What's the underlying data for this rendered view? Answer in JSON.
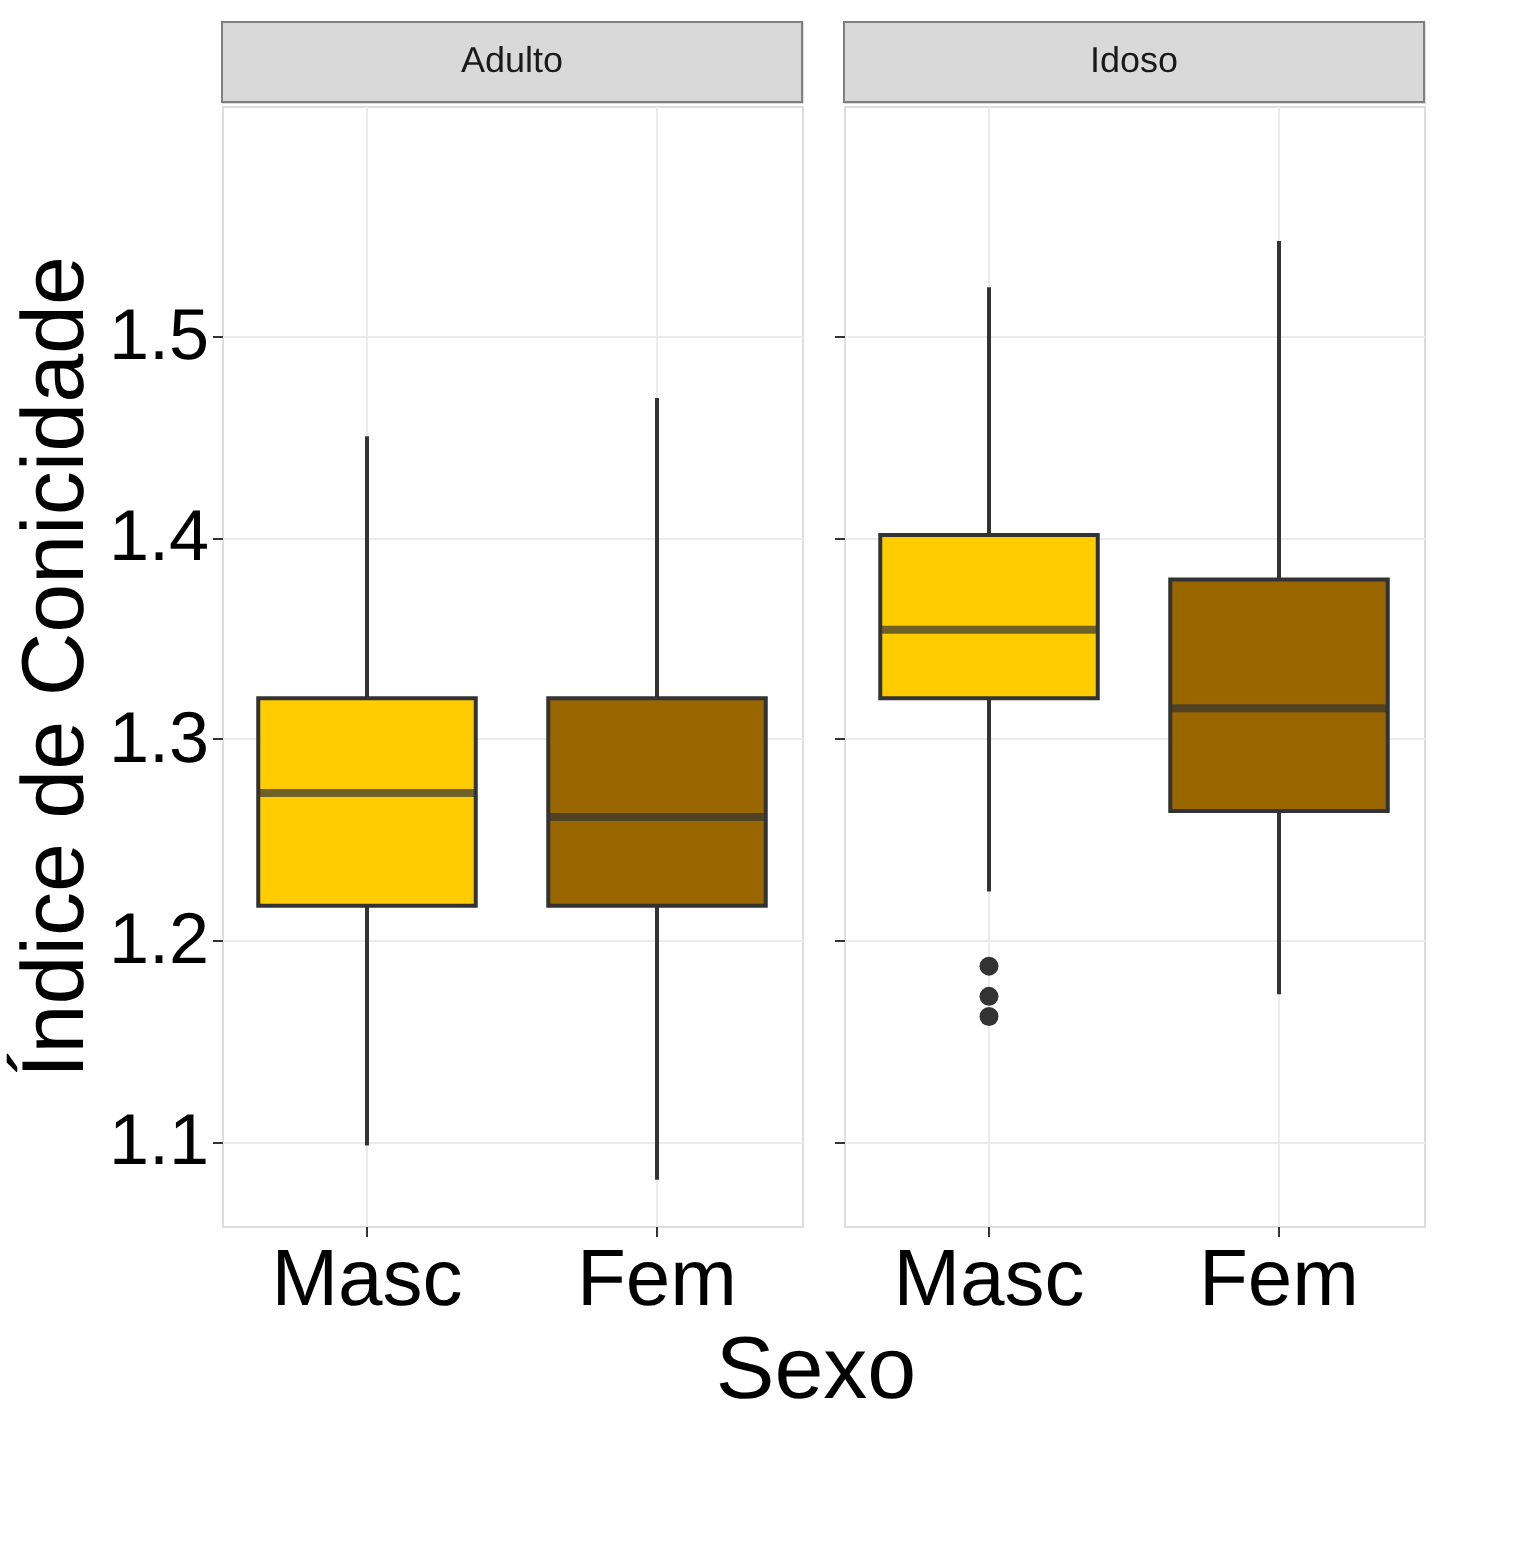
{
  "chart_data": [
    {
      "type": "box",
      "title": "Adulto",
      "ylabel": "Índice de Conicidade",
      "categories": [
        "Masc",
        "Fem"
      ],
      "colors": [
        "#ffcc00",
        "#996600"
      ],
      "boxes": [
        {
          "low": 1.098,
          "q1": 1.217,
          "median": 1.273,
          "q3": 1.32,
          "high": 1.45
        },
        {
          "low": 1.081,
          "q1": 1.217,
          "median": 1.261,
          "q3": 1.32,
          "high": 1.469
        }
      ],
      "ylim": [
        1.058,
        1.614
      ],
      "yticks": [
        1.1,
        1.2,
        1.3,
        1.4,
        1.5
      ],
      "grid": true
    },
    {
      "type": "box",
      "title": "Idoso",
      "xlabel": "Sexo",
      "categories": [
        "Masc",
        "Fem"
      ],
      "colors": [
        "#ffcc00",
        "#996600"
      ],
      "boxes": [
        {
          "low": 1.224,
          "q1": 1.32,
          "median": 1.354,
          "q3": 1.401,
          "high": 1.524,
          "outliers": [
            1.187,
            1.172,
            1.162
          ]
        },
        {
          "low": 1.173,
          "q1": 1.264,
          "median": 1.315,
          "q3": 1.379,
          "high": 1.547
        }
      ],
      "ylim": [
        1.058,
        1.614
      ],
      "yticks": [
        1.1,
        1.2,
        1.3,
        1.4,
        1.5
      ],
      "grid": true,
      "tick_labels": "x"
    }
  ]
}
